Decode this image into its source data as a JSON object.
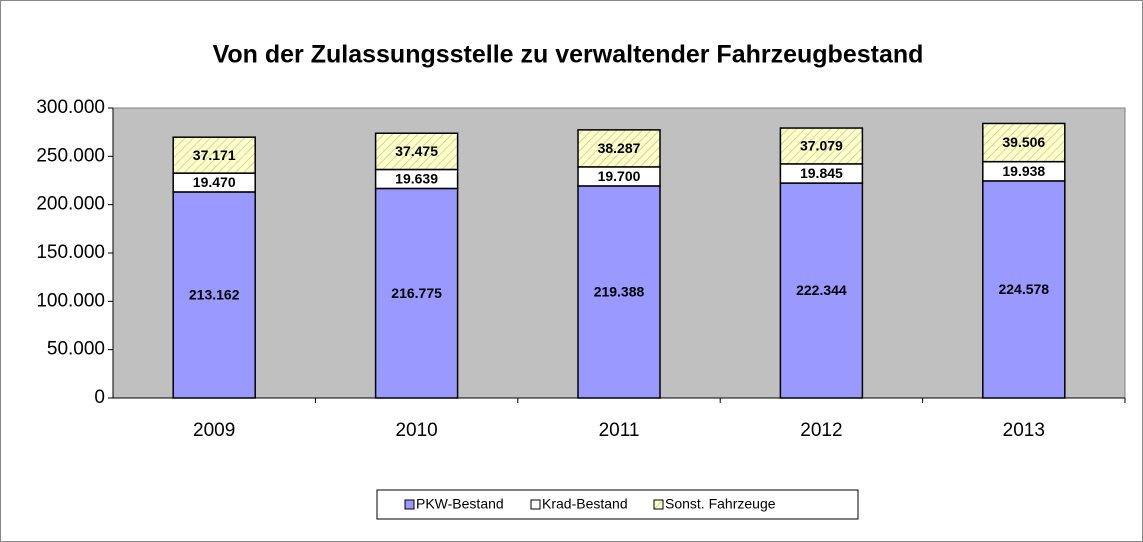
{
  "chart_data": {
    "type": "stacked_bar",
    "title": "Von der Zulassungsstelle zu verwaltender Fahrzeugbestand",
    "categories": [
      "2009",
      "2010",
      "2011",
      "2012",
      "2013"
    ],
    "series": [
      {
        "name": "PKW-Bestand",
        "color": "#9999ff",
        "values": [
          213162,
          216775,
          219388,
          222344,
          224578
        ],
        "value_labels": [
          "213.162",
          "216.775",
          "219.388",
          "222.344",
          "224.578"
        ]
      },
      {
        "name": "Krad-Bestand",
        "color": "#ffffff",
        "values": [
          19470,
          19639,
          19700,
          19845,
          19938
        ],
        "value_labels": [
          "19.470",
          "19.639",
          "19.700",
          "19.845",
          "19.938"
        ]
      },
      {
        "name": "Sonst. Fahrzeuge",
        "color": "#ffffcc",
        "pattern": "hatch",
        "values": [
          37171,
          37475,
          38287,
          37079,
          39506
        ],
        "value_labels": [
          "37.171",
          "37.475",
          "38.287",
          "37.079",
          "39.506"
        ]
      }
    ],
    "ylim": [
      0,
      300000
    ],
    "yticks": [
      0,
      {
        "value": 50000,
        "label": "50.000"
      },
      {
        "value": 100000,
        "label": "100.000"
      },
      {
        "value": 150000,
        "label": "150.000"
      },
      {
        "value": 200000,
        "label": "200.000"
      },
      {
        "value": 250000,
        "label": "250.000"
      },
      {
        "value": 300000,
        "label": "300.000"
      }
    ],
    "legend": "bottom",
    "plot_background": "#c0c0c0"
  }
}
